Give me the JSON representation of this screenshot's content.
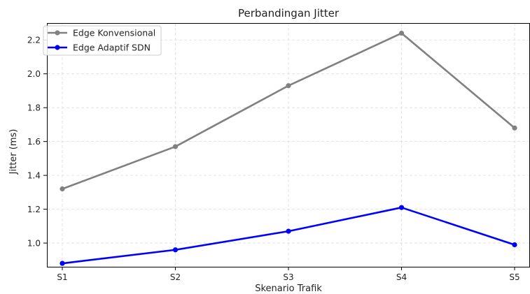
{
  "chart_data": {
    "type": "line",
    "title": "Perbandingan Jitter",
    "xlabel": "Skenario Trafik",
    "ylabel": "Jitter (ms)",
    "categories": [
      "S1",
      "S2",
      "S3",
      "S4",
      "S5"
    ],
    "ylim": [
      0.86,
      2.3
    ],
    "yticks": [
      "1.0",
      "1.2",
      "1.4",
      "1.6",
      "1.8",
      "2.0",
      "2.2"
    ],
    "grid": true,
    "legend_position": "top-left",
    "series": [
      {
        "name": "Edge Konvensional",
        "color": "#808080",
        "values": [
          1.32,
          1.57,
          1.93,
          2.24,
          1.68
        ]
      },
      {
        "name": "Edge Adaptif SDN",
        "color": "#0000ff",
        "values": [
          0.88,
          0.96,
          1.07,
          1.21,
          0.99
        ]
      }
    ]
  }
}
